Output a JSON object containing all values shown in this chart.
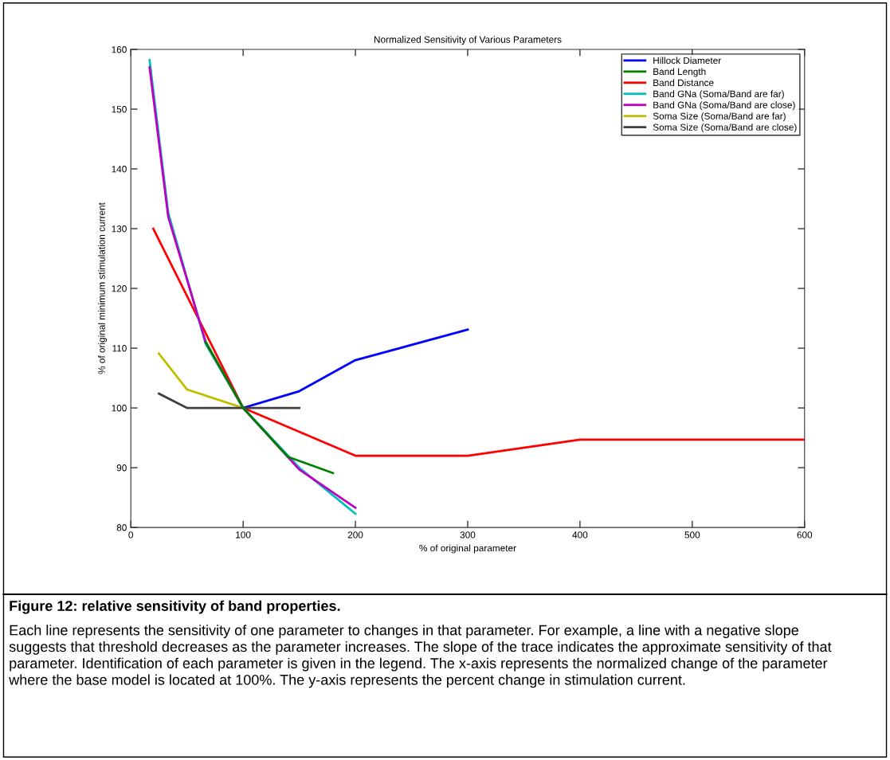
{
  "chart_data": {
    "type": "line",
    "title": "Normalized Sensitivity of Various Parameters",
    "xlabel": "% of original parameter",
    "ylabel": "% of original minimum stimulation current",
    "xlim": [
      0,
      600
    ],
    "xticks": [
      0,
      100,
      200,
      300,
      400,
      500,
      600
    ],
    "ylim": [
      80,
      160
    ],
    "yticks": [
      80,
      90,
      100,
      110,
      120,
      130,
      140,
      150,
      160
    ],
    "grid": false,
    "legend": "top right",
    "marker": "none",
    "line_style": "solid",
    "series": [
      {
        "name": "Hillock Diameter",
        "color": "#0000ff",
        "x": [
          100,
          150,
          200,
          300
        ],
        "values": [
          100,
          102.8,
          108,
          113.1
        ]
      },
      {
        "name": "Band Length",
        "color": "#008000",
        "x": [
          66.7,
          100,
          140,
          180
        ],
        "values": [
          111,
          100,
          91.8,
          89.1
        ]
      },
      {
        "name": "Band Distance",
        "color": "#ff0000",
        "x": [
          20,
          100,
          200,
          300,
          400,
          600
        ],
        "values": [
          130,
          100,
          92,
          92,
          94.7,
          94.7
        ]
      },
      {
        "name": "Band GNa (Soma/Band are far)",
        "color": "#00bfbf",
        "x": [
          16.7,
          33.3,
          66.7,
          100,
          150,
          200
        ],
        "values": [
          158.2,
          132.7,
          110.7,
          100,
          90,
          82.3
        ]
      },
      {
        "name": "Band GNa (Soma/Band are close)",
        "color": "#bf00bf",
        "x": [
          16.7,
          33.3,
          66.7,
          100,
          150,
          200
        ],
        "values": [
          157,
          132,
          111,
          100,
          89.7,
          83.3
        ]
      },
      {
        "name": "Soma Size (Soma/Band are far)",
        "color": "#bfbf00",
        "x": [
          25,
          50,
          100
        ],
        "values": [
          109.1,
          103.1,
          100
        ]
      },
      {
        "name": "Soma Size (Soma/Band are close)",
        "color": "#404040",
        "x": [
          25,
          50,
          100,
          150
        ],
        "values": [
          102.4,
          100,
          100,
          100
        ]
      }
    ],
    "annotations": [
      "Figure 12: relative sensitivity of band properties.",
      "Each line represents the sensitivity of one parameter to changes in that parameter. For example, a line with a negative slope suggests that threshold decreases as the parameter increases. The slope of the trace indicates the approximate sensitivity of that parameter. Identification of each parameter is given in the legend. The x-axis represents the normalized change of the parameter where the base model is located at 100%. The y-axis represents the percent change in stimulation current."
    ]
  }
}
